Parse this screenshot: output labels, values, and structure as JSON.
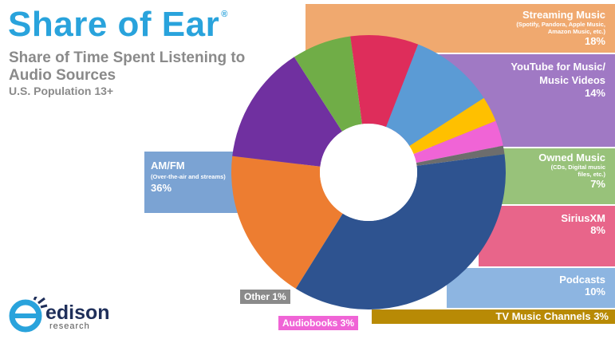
{
  "header": {
    "title": "Share of Ear",
    "registered": "®",
    "subtitle": "Share of Time Spent Listening to Audio Sources",
    "population": "U.S. Population 13+"
  },
  "logo": {
    "word": "edison",
    "sub": "research"
  },
  "colors": {
    "title": "#29a3dc",
    "am_fm": "#2e5390",
    "streaming": "#ed7d31",
    "youtube": "#7030a0",
    "owned": "#70ad47",
    "siriusxm": "#de2d5b",
    "podcasts": "#5b9bd5",
    "tv": "#ffc000",
    "audiobooks": "#f064d6",
    "other": "#6d6d6d"
  },
  "chart_data": {
    "type": "pie",
    "donut": true,
    "title": "Share of Ear",
    "subtitle": "Share of Time Spent Listening to Audio Sources",
    "population": "U.S. Population 13+",
    "unit": "%",
    "slices": [
      {
        "key": "streaming",
        "label": "Streaming Music",
        "detail": "(Spotify, Pandora, Apple Music, Amazon Music, etc.)",
        "value": 18,
        "pct_label": "18%"
      },
      {
        "key": "youtube",
        "label": "YouTube for Music/ Music Videos",
        "detail": "",
        "value": 14,
        "pct_label": "14%"
      },
      {
        "key": "owned",
        "label": "Owned Music",
        "detail": "(CDs, Digital music files, etc.)",
        "value": 7,
        "pct_label": "7%"
      },
      {
        "key": "siriusxm",
        "label": "SiriusXM",
        "detail": "",
        "value": 8,
        "pct_label": "8%"
      },
      {
        "key": "podcasts",
        "label": "Podcasts",
        "detail": "",
        "value": 10,
        "pct_label": "10%"
      },
      {
        "key": "tv",
        "label": "TV Music Channels",
        "detail": "",
        "value": 3,
        "pct_label": "3%"
      },
      {
        "key": "audiobooks",
        "label": "Audiobooks",
        "detail": "",
        "value": 3,
        "pct_label": "3%"
      },
      {
        "key": "other",
        "label": "Other",
        "detail": "",
        "value": 1,
        "pct_label": "1%"
      },
      {
        "key": "am_fm",
        "label": "AM/FM",
        "detail": "(Over-the-air and streams)",
        "value": 36,
        "pct_label": "36%"
      }
    ]
  }
}
